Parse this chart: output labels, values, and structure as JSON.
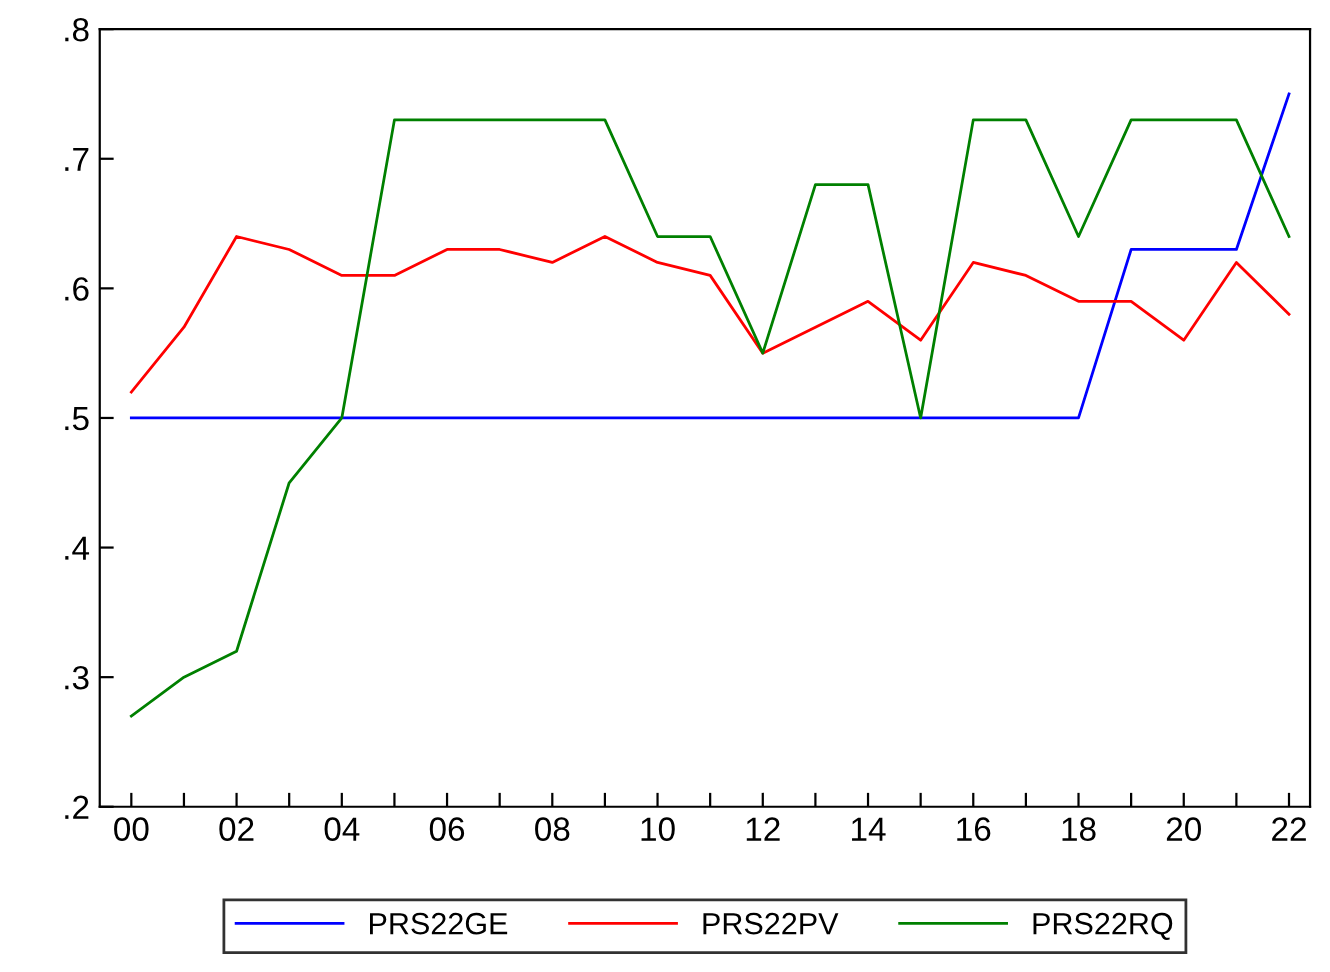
{
  "chart_data": {
    "type": "line",
    "categories": [
      "00",
      null,
      "02",
      null,
      "04",
      null,
      "06",
      null,
      "08",
      null,
      "10",
      null,
      "12",
      null,
      "14",
      null,
      "16",
      null,
      "18",
      null,
      "20",
      null,
      "22"
    ],
    "series": [
      {
        "name": "PRS22GE",
        "color": "#0000ff",
        "values": [
          0.5,
          0.5,
          0.5,
          0.5,
          0.5,
          0.5,
          0.5,
          0.5,
          0.5,
          0.5,
          0.5,
          0.5,
          0.5,
          0.5,
          0.5,
          0.5,
          0.5,
          0.5,
          0.5,
          0.63,
          0.63,
          0.63,
          0.75
        ]
      },
      {
        "name": "PRS22PV",
        "color": "#ff0000",
        "values": [
          0.52,
          0.57,
          0.64,
          0.63,
          0.61,
          0.61,
          0.63,
          0.63,
          0.62,
          0.64,
          0.62,
          0.61,
          0.55,
          0.57,
          0.59,
          0.56,
          0.62,
          0.61,
          0.59,
          0.59,
          0.56,
          0.62,
          0.58
        ]
      },
      {
        "name": "PRS22RQ",
        "color": "#008000",
        "values": [
          0.27,
          0.3,
          0.32,
          0.45,
          0.5,
          0.73,
          0.73,
          0.73,
          0.73,
          0.73,
          0.64,
          0.64,
          0.55,
          0.68,
          0.68,
          0.5,
          0.73,
          0.73,
          0.64,
          0.73,
          0.73,
          0.73,
          0.64
        ]
      }
    ],
    "ylim": [
      0.2,
      0.8
    ],
    "yticks": [
      {
        "value": 0.2,
        "label": ".2"
      },
      {
        "value": 0.3,
        "label": ".3"
      },
      {
        "value": 0.4,
        "label": ".4"
      },
      {
        "value": 0.5,
        "label": ".5"
      },
      {
        "value": 0.6,
        "label": ".6"
      },
      {
        "value": 0.7,
        "label": ".7"
      },
      {
        "value": 0.8,
        "label": ".8"
      }
    ],
    "legend": "bottom",
    "grid": false,
    "marker": "none",
    "line_style": "solid"
  }
}
